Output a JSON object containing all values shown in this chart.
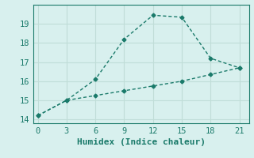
{
  "xlabel": "Humidex (Indice chaleur)",
  "line1_x": [
    0,
    3,
    6,
    9,
    12,
    15,
    18,
    21
  ],
  "line1_y": [
    14.2,
    15.0,
    16.1,
    18.2,
    19.45,
    19.35,
    17.2,
    16.7
  ],
  "line2_x": [
    0,
    3,
    6,
    9,
    12,
    15,
    18,
    21
  ],
  "line2_y": [
    14.2,
    15.0,
    15.25,
    15.5,
    15.75,
    16.0,
    16.35,
    16.7
  ],
  "line_color": "#1a7a6a",
  "bg_color": "#d8f0ee",
  "grid_color": "#c0ddd8",
  "xlim": [
    -0.5,
    22
  ],
  "ylim": [
    13.8,
    20.0
  ],
  "xticks": [
    0,
    3,
    6,
    9,
    12,
    15,
    18,
    21
  ],
  "yticks": [
    14,
    15,
    16,
    17,
    18,
    19
  ],
  "marker": "D",
  "markersize": 2.5,
  "linewidth": 1.0,
  "tick_fontsize": 7.5,
  "xlabel_fontsize": 8.0
}
